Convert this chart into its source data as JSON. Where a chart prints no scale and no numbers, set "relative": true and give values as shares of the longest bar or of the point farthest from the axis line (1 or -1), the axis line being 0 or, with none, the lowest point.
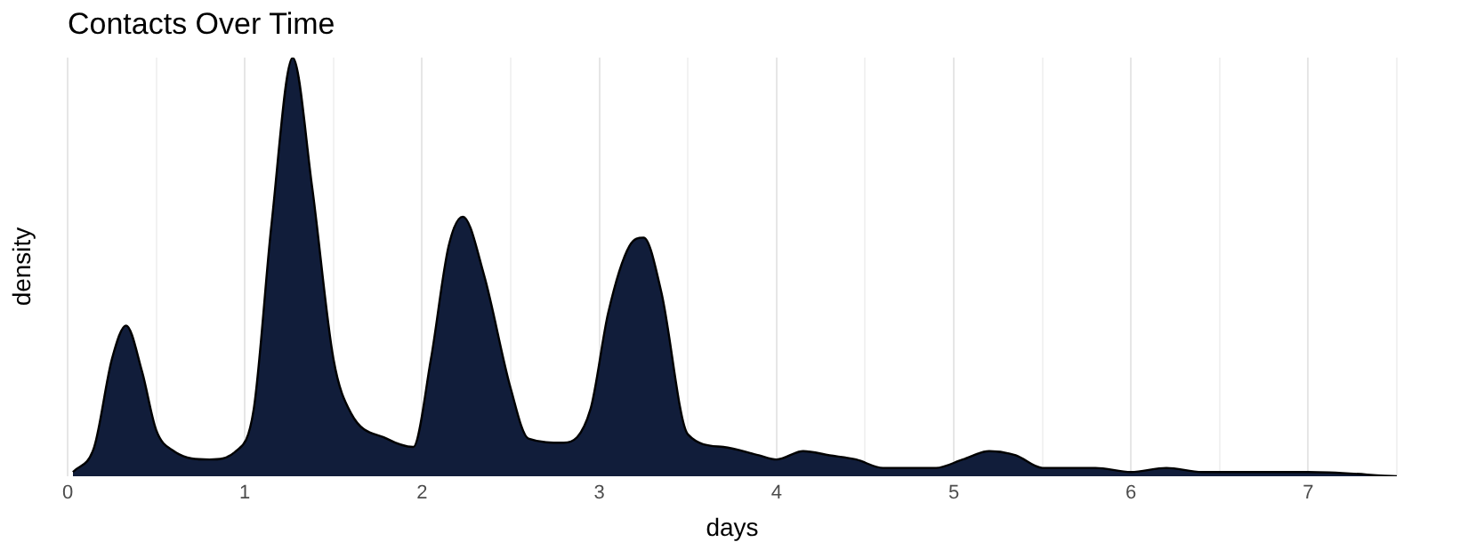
{
  "chart_data": {
    "type": "area",
    "title": "Contacts Over Time",
    "xlabel": "days",
    "ylabel": "density",
    "relative": true,
    "color": "#111d3a",
    "x": [
      0.03,
      0.15,
      0.25,
      0.33,
      0.42,
      0.5,
      0.6,
      0.8,
      0.95,
      1.05,
      1.15,
      1.27,
      1.38,
      1.5,
      1.6,
      1.8,
      1.95,
      2.05,
      2.15,
      2.23,
      2.35,
      2.5,
      2.6,
      2.8,
      2.95,
      3.05,
      3.17,
      3.25,
      3.35,
      3.5,
      3.7,
      3.9,
      4.0,
      4.15,
      4.3,
      4.45,
      4.6,
      4.9,
      5.05,
      5.2,
      5.35,
      5.5,
      5.8,
      6.0,
      6.2,
      6.4,
      6.6,
      7.0,
      7.5
    ],
    "values": [
      0.01,
      0.07,
      0.28,
      0.36,
      0.25,
      0.11,
      0.06,
      0.04,
      0.06,
      0.16,
      0.6,
      1,
      0.69,
      0.28,
      0.15,
      0.09,
      0.07,
      0.28,
      0.55,
      0.62,
      0.48,
      0.21,
      0.09,
      0.08,
      0.16,
      0.39,
      0.55,
      0.57,
      0.44,
      0.1,
      0.07,
      0.05,
      0.04,
      0.06,
      0.05,
      0.04,
      0.02,
      0.02,
      0.04,
      0.06,
      0.05,
      0.02,
      0.02,
      0.01,
      0.02,
      0.01,
      0.01,
      0.01,
      0
    ],
    "xlim": [
      0,
      7.5
    ],
    "xticks": [
      0,
      {
        "value": 0.5,
        "label": null
      },
      1,
      {
        "value": 1.5,
        "label": null
      },
      2,
      {
        "value": 2.5,
        "label": null
      },
      3,
      {
        "value": 3.5,
        "label": null
      },
      4,
      {
        "value": 4.5,
        "label": null
      },
      5,
      {
        "value": 5.5,
        "label": null
      },
      6,
      {
        "value": 6.5,
        "label": null
      },
      7,
      {
        "value": 7.5,
        "label": null
      }
    ],
    "grid": "x"
  }
}
